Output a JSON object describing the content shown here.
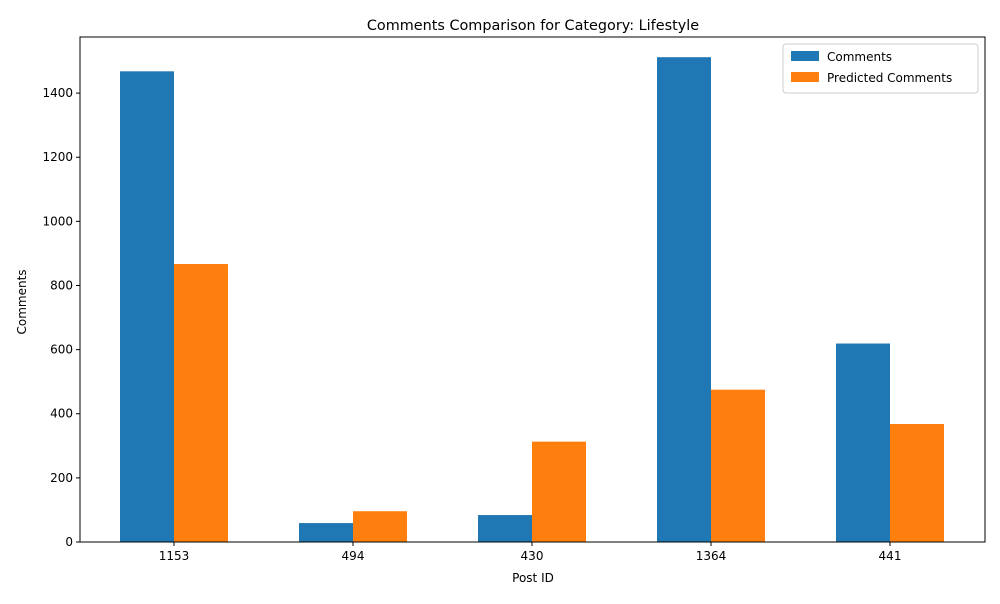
{
  "chart_data": {
    "type": "bar",
    "title": "Comments Comparison for Category: Lifestyle",
    "xlabel": "Post ID",
    "ylabel": "Comments",
    "categories": [
      "1153",
      "494",
      "430",
      "1364",
      "441"
    ],
    "series": [
      {
        "name": "Comments",
        "color": "#1f77b4",
        "values": [
          1468,
          59,
          84,
          1512,
          619
        ]
      },
      {
        "name": "Predicted Comments",
        "color": "#ff7f0e",
        "values": [
          867,
          96,
          313,
          475,
          368
        ]
      }
    ],
    "ylim": [
      0,
      1575
    ],
    "yticks": [
      0,
      200,
      400,
      600,
      800,
      1000,
      1200,
      1400
    ],
    "grid": false,
    "legend_position": "top-right"
  }
}
